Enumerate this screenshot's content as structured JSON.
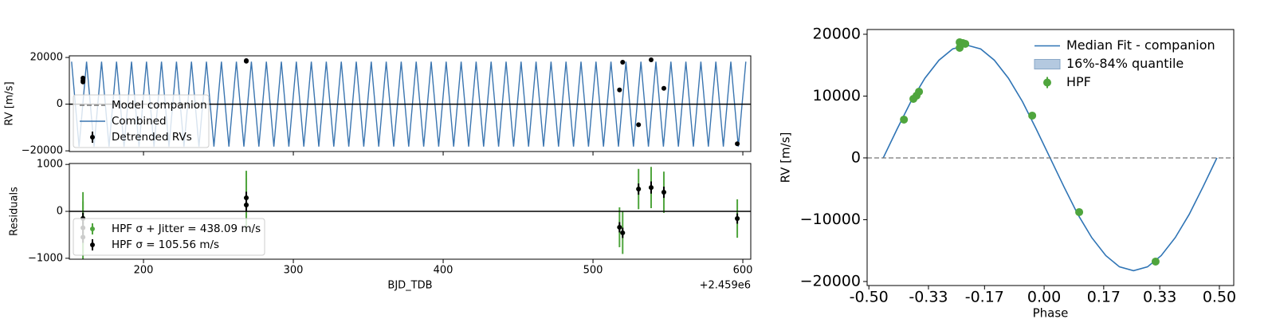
{
  "chart_data": [
    {
      "type": "line",
      "ylabel": "RV [m/s]",
      "xlim": [
        150.5,
        605.3
      ],
      "ylim": [
        -20300,
        20700
      ],
      "yticks": [
        {
          "value": -20000,
          "label": "−20000"
        },
        0,
        20000
      ],
      "hline": "solid",
      "legend": "lower left",
      "series": [
        {
          "name": "Model companion",
          "color": "#777777",
          "style": "dashed"
        },
        {
          "name": "Combined",
          "color": "#3a75b0",
          "style": "line",
          "x": [
            152,
            157,
            162,
            167,
            172,
            177,
            182,
            187,
            192,
            197,
            202,
            207,
            212,
            217,
            222,
            227,
            232,
            237,
            242,
            247,
            252,
            257,
            262,
            267,
            272,
            277,
            282,
            287,
            292,
            297,
            302,
            307,
            312,
            317,
            322,
            327,
            332,
            337,
            342,
            347,
            352,
            357,
            362,
            367,
            372,
            377,
            382,
            387,
            392,
            397,
            402,
            407,
            412,
            417,
            422,
            427,
            432,
            437,
            442,
            447,
            452,
            457,
            462,
            467,
            472,
            477,
            482,
            487,
            492,
            497,
            502,
            507,
            512,
            517,
            522,
            527,
            532,
            537,
            542,
            547,
            552,
            557,
            562,
            567,
            572,
            577,
            582,
            587,
            592,
            597,
            602
          ],
          "values": [
            18200,
            -18200,
            18200,
            -18200,
            18200,
            -18200,
            18200,
            -18200,
            18200,
            -18200,
            18200,
            -18200,
            18200,
            -18200,
            18200,
            -18200,
            18200,
            -18200,
            18200,
            -18200,
            18200,
            -18200,
            18200,
            -18200,
            18200,
            -18200,
            18200,
            -18200,
            18200,
            -18200,
            18200,
            -18200,
            18200,
            -18200,
            18200,
            -18200,
            18200,
            -18200,
            18200,
            -18200,
            18200,
            -18200,
            18200,
            -18200,
            18200,
            -18200,
            18200,
            -18200,
            18200,
            -18200,
            18200,
            -18200,
            18200,
            -18200,
            18200,
            -18200,
            18200,
            -18200,
            18200,
            -18200,
            18200,
            -18200,
            18200,
            -18200,
            18200,
            -18200,
            18200,
            -18200,
            18200,
            -18200,
            18200,
            -18200,
            18200,
            -18200,
            18200,
            -18200,
            18200,
            -18200,
            18200,
            -18200,
            18200,
            -18200,
            18200,
            -18200,
            18200,
            -18200,
            18200,
            -18200,
            18200,
            -18200,
            18200
          ]
        },
        {
          "name": "Detrended RVs",
          "color": "#000000",
          "style": "points",
          "x": [
            159.6,
            159.6,
            159.6,
            268.6,
            268.6,
            517.7,
            519.8,
            530.4,
            538.8,
            547.3,
            596.3
          ],
          "values": [
            11186,
            10170,
            9490,
            18644,
            18400,
            6100,
            17966,
            -8814,
            18983,
            6780,
            -16950
          ]
        }
      ]
    },
    {
      "type": "errorbar",
      "ylabel": "Residuals",
      "xlabel": "BJD_TDB",
      "x_offset_label": "+2.459e6",
      "xlim": [
        150.5,
        605.3
      ],
      "ylim": [
        -1020,
        1020
      ],
      "xticks": [
        200,
        300,
        400,
        500,
        600
      ],
      "yticks": [
        {
          "value": -1000,
          "label": "−1000"
        },
        0,
        1000
      ],
      "hline": "solid",
      "legend": "lower left",
      "series": [
        {
          "name": "HPF σ + Jitter = 438.09 m/s",
          "color": "#4fa53d",
          "style": "errorbar",
          "x": [
            159.6,
            159.6,
            159.6,
            268.6,
            268.6,
            517.7,
            519.8,
            530.4,
            538.8,
            547.3,
            596.3
          ],
          "values": [
            -150,
            -350,
            -550,
            288,
            136,
            -339,
            -458,
            475,
            508,
            407,
            -153
          ],
          "errors": [
            560,
            560,
            560,
            576,
            576,
            425,
            450,
            430,
            440,
            440,
            410
          ]
        },
        {
          "name": "HPF σ = 105.56 m/s",
          "color": "#000000",
          "style": "errorbar",
          "x": [
            159.6,
            159.6,
            159.6,
            268.6,
            268.6,
            517.7,
            519.8,
            530.4,
            538.8,
            547.3,
            596.3
          ],
          "values": [
            -150,
            -350,
            -550,
            288,
            136,
            -339,
            -458,
            475,
            508,
            407,
            -153
          ],
          "errors": [
            120,
            120,
            120,
            130,
            130,
            110,
            110,
            120,
            130,
            120,
            110
          ]
        }
      ]
    },
    {
      "type": "line",
      "xlabel": "Phase",
      "ylabel": "RV [m/s]",
      "xlim": [
        -0.505,
        0.541
      ],
      "ylim": [
        -20650,
        20770
      ],
      "xticks": [
        {
          "value": -0.5,
          "label": "-0.50"
        },
        {
          "value": -0.33,
          "label": "-0.33"
        },
        {
          "value": -0.17,
          "label": "-0.17"
        },
        {
          "value": 0,
          "label": "0.00"
        },
        {
          "value": 0.17,
          "label": "0.17"
        },
        {
          "value": 0.33,
          "label": "0.33"
        },
        {
          "value": 0.5,
          "label": "0.50"
        }
      ],
      "yticks": [
        {
          "value": -20000,
          "label": "−20000"
        },
        {
          "value": -10000,
          "label": "−10000"
        },
        0,
        10000,
        20000
      ],
      "hline": "dashed",
      "legend": "upper right",
      "series": [
        {
          "name": "Median Fit - companion",
          "color": "#2f74b5",
          "style": "line",
          "x": [
            -0.459,
            -0.419,
            -0.38,
            -0.34,
            -0.3,
            -0.261,
            -0.221,
            -0.181,
            -0.142,
            -0.102,
            -0.062,
            -0.023,
            0.017,
            0.057,
            0.096,
            0.136,
            0.176,
            0.215,
            0.255,
            0.295,
            0.334,
            0.374,
            0.414,
            0.453,
            0.493
          ],
          "values": [
            0,
            4723,
            9125,
            12905,
            15805,
            17628,
            18250,
            17628,
            15805,
            12905,
            9125,
            4723,
            0,
            -4723,
            -9125,
            -12905,
            -15805,
            -17628,
            -18250,
            -17628,
            -15805,
            -12905,
            -9125,
            -4723,
            0
          ]
        },
        {
          "name": "16%-84% quantile",
          "color": "#b4c9e0",
          "style": "band"
        },
        {
          "name": "HPF",
          "color": "#4fa53d",
          "style": "points",
          "x": [
            -0.4,
            -0.373,
            -0.364,
            -0.357,
            -0.241,
            -0.241,
            -0.232,
            -0.225,
            -0.034,
            0.1,
            0.318
          ],
          "values": [
            6194,
            9548,
            10065,
            10710,
            18710,
            17806,
            18581,
            18452,
            6839,
            -8774,
            -16774
          ]
        }
      ]
    }
  ]
}
